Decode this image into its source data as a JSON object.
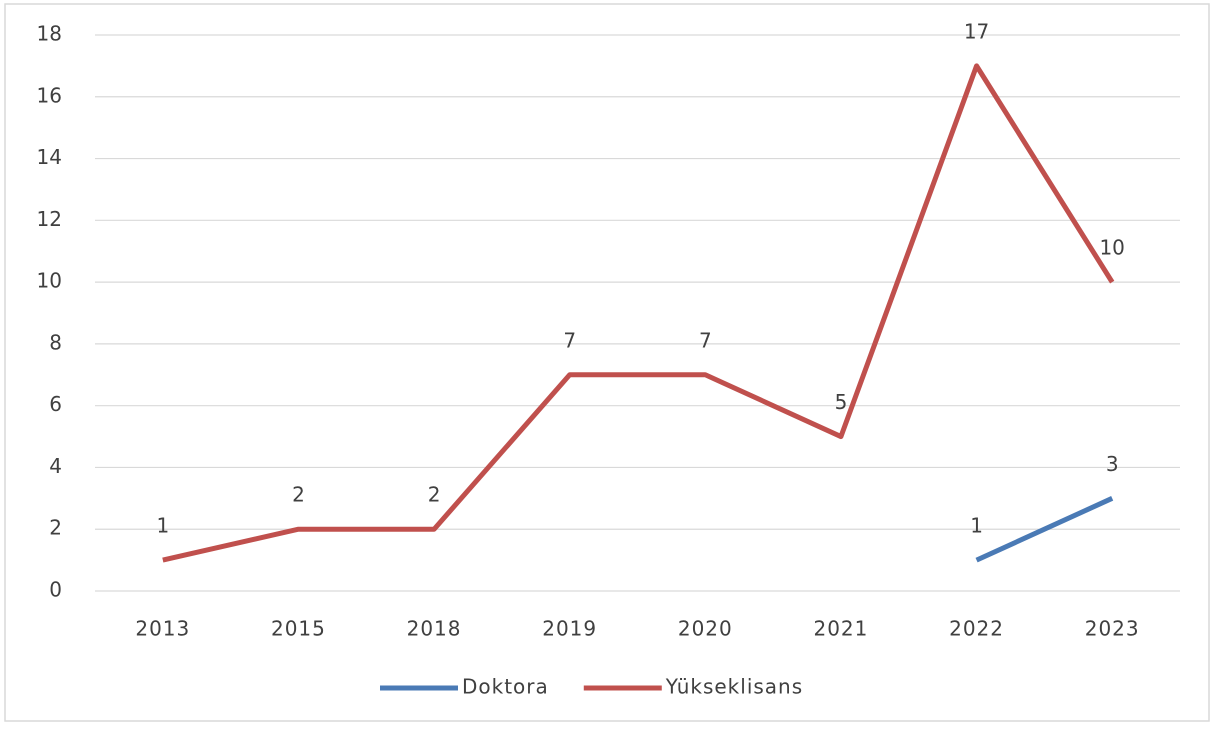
{
  "chart_data": {
    "type": "line",
    "categories": [
      "2013",
      "2015",
      "2018",
      "2019",
      "2020",
      "2021",
      "2022",
      "2023"
    ],
    "series": [
      {
        "name": "Doktora",
        "color": "#4a7ab5",
        "values": [
          null,
          null,
          null,
          null,
          null,
          null,
          1,
          3
        ]
      },
      {
        "name": "Yükseklisans",
        "color": "#c0504d",
        "values": [
          1,
          2,
          2,
          7,
          7,
          5,
          17,
          10
        ]
      }
    ],
    "ylim": [
      0,
      18
    ],
    "yticks": [
      0,
      2,
      4,
      6,
      8,
      10,
      12,
      14,
      16,
      18
    ],
    "grid": true,
    "legend": "bottom"
  }
}
